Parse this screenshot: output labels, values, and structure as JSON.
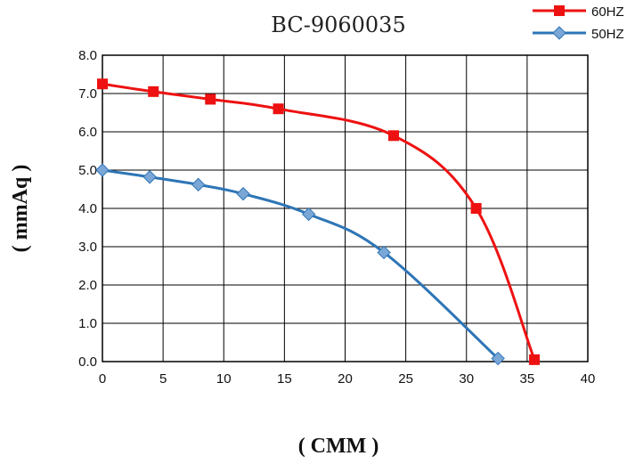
{
  "chart_data": {
    "type": "line",
    "title": "BC-9060035",
    "xlabel": "( CMM )",
    "ylabel": "( mmAq )",
    "xlim": [
      0,
      40
    ],
    "ylim": [
      0,
      8
    ],
    "x_ticks": [
      "0",
      "5",
      "10",
      "15",
      "20",
      "25",
      "30",
      "35",
      "40"
    ],
    "y_ticks": [
      "0.0",
      "1.0",
      "2.0",
      "3.0",
      "4.0",
      "5.0",
      "6.0",
      "7.0",
      "8.0"
    ],
    "grid": true,
    "legend_position": "top-right",
    "series": [
      {
        "name": "60HZ",
        "color": "#ee1111",
        "marker": "square",
        "points": [
          [
            0,
            7.25
          ],
          [
            4.2,
            7.05
          ],
          [
            8.9,
            6.85
          ],
          [
            14.5,
            6.6
          ],
          [
            24,
            5.9
          ],
          [
            30.8,
            4.0
          ],
          [
            35.6,
            0.05
          ]
        ]
      },
      {
        "name": "50HZ",
        "color": "#2e75b6",
        "marker": "diamond",
        "points": [
          [
            0,
            5.0
          ],
          [
            3.9,
            4.82
          ],
          [
            7.9,
            4.62
          ],
          [
            11.6,
            4.38
          ],
          [
            17,
            3.85
          ],
          [
            23.2,
            2.85
          ],
          [
            32.6,
            0.08
          ]
        ]
      }
    ]
  }
}
